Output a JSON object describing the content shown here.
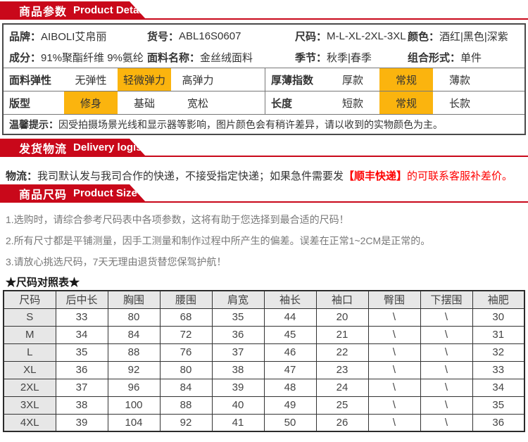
{
  "banners": {
    "product_detail": {
      "cn": "商品参数",
      "en": "Product Detail"
    },
    "delivery": {
      "cn": "发货物流",
      "en": "Delivery logistics"
    },
    "size": {
      "cn": "商品尺码",
      "en": "Product Size"
    }
  },
  "params": {
    "info_rows": [
      [
        {
          "label": "品牌：",
          "value": "AIBOLI艾帛丽"
        },
        {
          "label": "货号：",
          "value": "ABL16S0607"
        },
        {
          "label": "尺码：",
          "value": "M-L-XL-2XL-3XL"
        },
        {
          "label": "颜色：",
          "value": "酒红|黑色|深紫"
        }
      ],
      [
        {
          "label": "成分：",
          "value": "91%聚酯纤维 9%氨纶"
        },
        {
          "label": "面料名称：",
          "value": "金丝绒面料"
        },
        {
          "label": "季节：",
          "value": "秋季|春季"
        },
        {
          "label": "组合形式：",
          "value": "单件"
        }
      ]
    ],
    "attr_rows": [
      {
        "left": {
          "label": "面料弹性",
          "options": [
            "无弹性",
            "轻微弹力",
            "高弹力"
          ],
          "selected": 1
        },
        "right": {
          "label": "厚薄指数",
          "options": [
            "厚款",
            "常规",
            "薄款"
          ],
          "selected": 1
        }
      },
      {
        "left": {
          "label": "版型",
          "options": [
            "修身",
            "基础",
            "宽松"
          ],
          "selected": 0
        },
        "right": {
          "label": "长度",
          "options": [
            "短款",
            "常规",
            "长款"
          ],
          "selected": 1
        }
      }
    ],
    "notice_label": "温馨提示：",
    "notice_text": "因受拍摄场景光线和显示器等影响，图片颜色会有稍许差异，请以收到的实物颜色为主。"
  },
  "logistics": {
    "label": "物流：",
    "text_black": "我司默认发与我司合作的快递，不接受指定快递；如果急件需要发",
    "text_red_bold": "【顺丰快递】",
    "text_red": "的可联系客服补差价。"
  },
  "size_tips": [
    "1.选购时，请综合参考尺码表中各项参数，这将有助于您选择到最合适的尺码！",
    "2.所有尺寸都是平铺测量，因手工测量和制作过程中所产生的偏差。误差在正常1~2CM是正常的。",
    "3.请放心挑选尺码，7天无理由退货替您保驾护航！"
  ],
  "size_chart": {
    "title": "★尺码对照表★",
    "headers": [
      "尺码",
      "后中长",
      "胸围",
      "腰围",
      "肩宽",
      "袖长",
      "袖口",
      "臀围",
      "下摆围",
      "袖肥"
    ],
    "rows": [
      [
        "S",
        "33",
        "80",
        "68",
        "35",
        "44",
        "20",
        "\\",
        "\\",
        "30"
      ],
      [
        "M",
        "34",
        "84",
        "72",
        "36",
        "45",
        "21",
        "\\",
        "\\",
        "31"
      ],
      [
        "L",
        "35",
        "88",
        "76",
        "37",
        "46",
        "22",
        "\\",
        "\\",
        "32"
      ],
      [
        "XL",
        "36",
        "92",
        "80",
        "38",
        "47",
        "23",
        "\\",
        "\\",
        "33"
      ],
      [
        "2XL",
        "37",
        "96",
        "84",
        "39",
        "48",
        "24",
        "\\",
        "\\",
        "34"
      ],
      [
        "3XL",
        "38",
        "100",
        "88",
        "40",
        "49",
        "25",
        "\\",
        "\\",
        "35"
      ],
      [
        "4XL",
        "39",
        "104",
        "92",
        "41",
        "50",
        "26",
        "\\",
        "\\",
        "36"
      ]
    ]
  },
  "colors": {
    "banner_red": "#C9081A",
    "highlight_orange": "#FBB40E",
    "alert_red_text": "#FE0000",
    "table_header_gray": "#E7E7E7"
  }
}
